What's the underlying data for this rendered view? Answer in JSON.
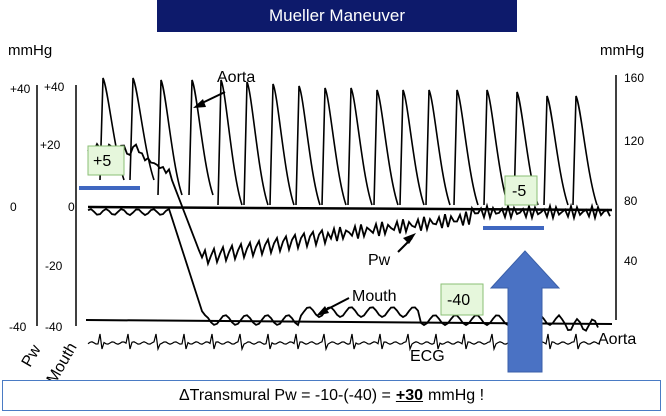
{
  "title": "Mueller Maneuver",
  "chart_data": {
    "type": "line",
    "title": "Mueller Maneuver",
    "left_unit": "mmHg",
    "right_unit": "mmHg",
    "pw_axis": {
      "label": "Pw",
      "range": [
        -40,
        40
      ],
      "ticks": [
        "+40",
        "+20",
        "0",
        "-20",
        "-40"
      ]
    },
    "mouth_axis": {
      "label": "Mouth",
      "range": [
        -40,
        40
      ],
      "ticks": [
        "+40",
        "0",
        "-40"
      ]
    },
    "aorta_axis": {
      "label": "Aorta",
      "range": [
        20,
        160
      ],
      "ticks": [
        "160",
        "120",
        "80",
        "40"
      ]
    },
    "series": [
      {
        "name": "Aorta",
        "unit": "mmHg"
      },
      {
        "name": "Pw",
        "unit": "mmHg"
      },
      {
        "name": "Mouth",
        "unit": "mmHg"
      },
      {
        "name": "ECG"
      }
    ],
    "annotations": {
      "pw_before": "+5",
      "pw_during": "-5",
      "mouth_during": "-40",
      "label_aorta_top": "Aorta",
      "label_pw": "Pw",
      "label_mouth": "Mouth",
      "label_ecg": "ECG",
      "label_aorta_right": "Aorta"
    }
  },
  "formula": {
    "prefix": "ΔTransmural Pw = -10-(-40) = ",
    "value": "+30",
    "suffix": " mmHg !"
  },
  "colors": {
    "title_bg": "#0d1a6b",
    "badge_bg": "#e6f7dc",
    "marker_blue": "#3f67c0",
    "arrow_blue": "#4a72c4",
    "box_border": "#4a7bc4"
  }
}
